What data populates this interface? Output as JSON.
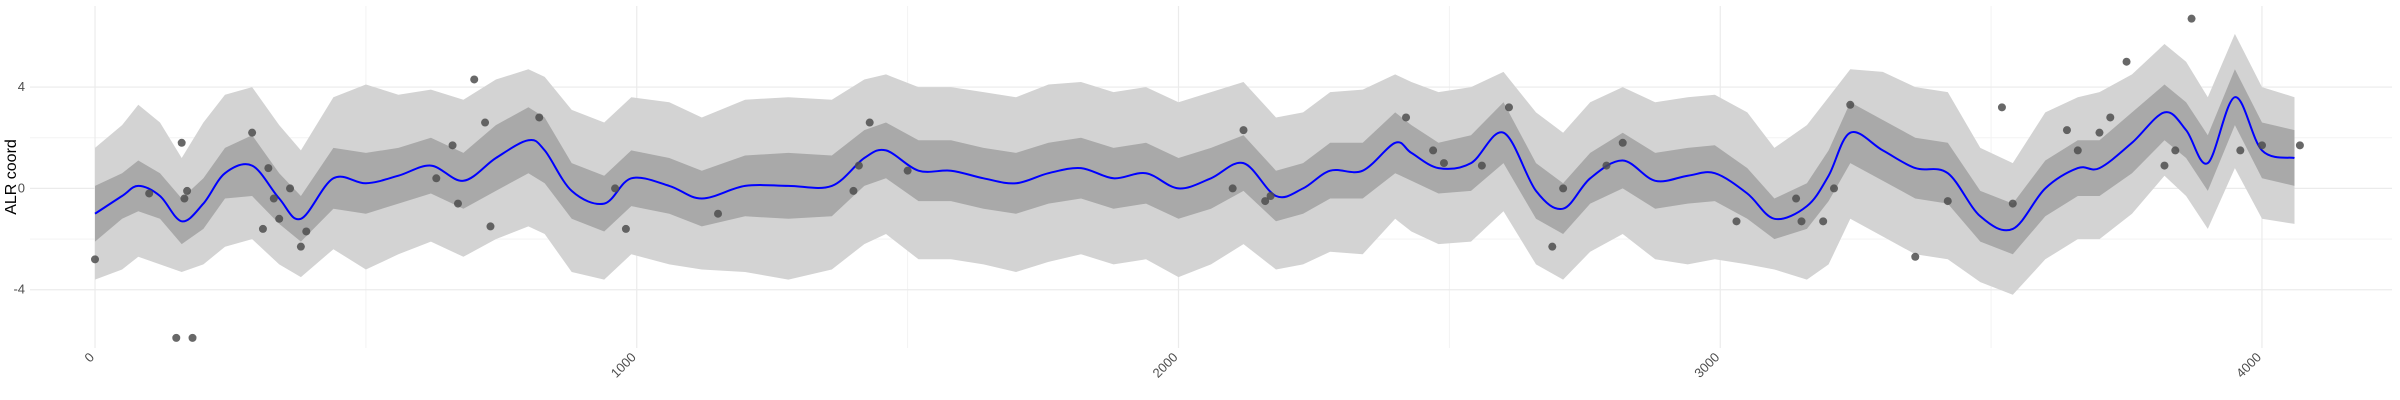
{
  "chart_data": {
    "type": "line",
    "title": "",
    "xlabel": "",
    "ylabel": "ALR coord",
    "xlim": [
      -120,
      4240
    ],
    "ylim": [
      -6.3,
      7.2
    ],
    "x_ticks": [
      0,
      1000,
      2000,
      3000,
      4000
    ],
    "x_tick_labels": [
      "0",
      "1000",
      "2000",
      "3000",
      "4000"
    ],
    "y_ticks": [
      -4,
      0,
      4
    ],
    "y_tick_labels": [
      "-4",
      "0",
      "4"
    ],
    "grid": true,
    "legend": "none",
    "colors": {
      "mean_line": "#0000ff",
      "inner_band": "#a9a9a9",
      "outer_band": "#d3d3d3",
      "points": "#4d4d4d",
      "grid": "#ebebeb"
    },
    "series": [
      {
        "type": "line",
        "x": [
          0,
          50,
          80,
          120,
          160,
          200,
          240,
          290,
          340,
          380,
          440,
          500,
          560,
          620,
          680,
          740,
          800,
          830,
          880,
          940,
          990,
          1060,
          1120,
          1200,
          1280,
          1360,
          1420,
          1460,
          1520,
          1580,
          1640,
          1700,
          1760,
          1820,
          1880,
          1940,
          2000,
          2060,
          2120,
          2180,
          2230,
          2280,
          2340,
          2400,
          2430,
          2480,
          2540,
          2600,
          2660,
          2710,
          2760,
          2820,
          2880,
          2940,
          2990,
          3050,
          3100,
          3160,
          3200,
          3240,
          3300,
          3360,
          3420,
          3480,
          3540,
          3600,
          3660,
          3700,
          3760,
          3820,
          3860,
          3900,
          3950,
          4000,
          4060
        ],
        "y": [
          -1.0,
          -0.3,
          0.1,
          -0.3,
          -1.3,
          -0.6,
          0.6,
          0.9,
          -0.4,
          -1.2,
          0.4,
          0.2,
          0.5,
          0.9,
          0.3,
          1.2,
          1.9,
          1.5,
          -0.1,
          -0.6,
          0.4,
          0.1,
          -0.4,
          0.1,
          0.1,
          0.1,
          1.2,
          1.5,
          0.7,
          0.7,
          0.4,
          0.2,
          0.6,
          0.8,
          0.4,
          0.6,
          0.0,
          0.4,
          1.0,
          -0.3,
          0.0,
          0.7,
          0.7,
          1.8,
          1.4,
          0.8,
          1.0,
          2.2,
          -0.1,
          -0.8,
          0.4,
          1.1,
          0.3,
          0.5,
          0.6,
          -0.2,
          -1.2,
          -0.7,
          0.5,
          2.2,
          1.5,
          0.8,
          0.6,
          -1.1,
          -1.6,
          0.0,
          0.8,
          0.8,
          1.8,
          3.0,
          2.3,
          1.0,
          3.6,
          1.5,
          1.2
        ]
      },
      {
        "type": "band-inner",
        "x": [
          0,
          50,
          80,
          120,
          160,
          200,
          240,
          290,
          340,
          380,
          440,
          500,
          560,
          620,
          680,
          740,
          800,
          830,
          880,
          940,
          990,
          1060,
          1120,
          1200,
          1280,
          1360,
          1420,
          1460,
          1520,
          1580,
          1640,
          1700,
          1760,
          1820,
          1880,
          1940,
          2000,
          2060,
          2120,
          2180,
          2230,
          2280,
          2340,
          2400,
          2430,
          2480,
          2540,
          2600,
          2660,
          2710,
          2760,
          2820,
          2880,
          2940,
          2990,
          3050,
          3100,
          3160,
          3200,
          3240,
          3300,
          3360,
          3420,
          3480,
          3540,
          3600,
          3660,
          3700,
          3760,
          3820,
          3860,
          3900,
          3950,
          4000,
          4060
        ],
        "lower": [
          -2.1,
          -1.2,
          -0.9,
          -1.2,
          -2.2,
          -1.6,
          -0.4,
          -0.3,
          -1.4,
          -2.1,
          -0.8,
          -1.0,
          -0.6,
          -0.2,
          -0.8,
          -0.1,
          0.6,
          0.2,
          -1.2,
          -1.7,
          -0.7,
          -1.0,
          -1.5,
          -1.1,
          -1.2,
          -1.1,
          0.1,
          0.4,
          -0.5,
          -0.5,
          -0.8,
          -1.0,
          -0.6,
          -0.4,
          -0.8,
          -0.6,
          -1.2,
          -0.8,
          -0.1,
          -1.3,
          -1.0,
          -0.4,
          -0.4,
          0.6,
          0.3,
          -0.2,
          -0.1,
          1.0,
          -1.2,
          -1.8,
          -0.6,
          0.0,
          -0.8,
          -0.6,
          -0.5,
          -1.2,
          -2.0,
          -1.6,
          -0.5,
          1.0,
          0.3,
          -0.4,
          -0.6,
          -2.1,
          -2.6,
          -1.1,
          -0.3,
          -0.3,
          0.6,
          1.9,
          1.2,
          -0.1,
          2.5,
          0.4,
          0.1
        ],
        "upper": [
          0.1,
          0.6,
          1.1,
          0.6,
          -0.4,
          0.4,
          1.6,
          2.1,
          0.6,
          -0.3,
          1.6,
          1.4,
          1.6,
          2.0,
          1.4,
          2.5,
          3.2,
          2.8,
          1.0,
          0.5,
          1.5,
          1.2,
          0.7,
          1.3,
          1.4,
          1.3,
          2.3,
          2.6,
          1.9,
          1.9,
          1.6,
          1.4,
          1.8,
          2.0,
          1.6,
          1.8,
          1.2,
          1.6,
          2.1,
          0.7,
          1.0,
          1.8,
          1.8,
          3.0,
          2.5,
          1.8,
          2.1,
          3.4,
          1.0,
          0.2,
          1.4,
          2.2,
          1.4,
          1.6,
          1.7,
          0.8,
          -0.4,
          0.2,
          1.5,
          3.4,
          2.7,
          2.0,
          1.8,
          -0.1,
          -0.6,
          1.1,
          1.9,
          1.9,
          3.0,
          4.1,
          3.4,
          2.1,
          4.7,
          2.6,
          2.3
        ]
      },
      {
        "type": "band-outer",
        "x": [
          0,
          50,
          80,
          120,
          160,
          200,
          240,
          290,
          340,
          380,
          440,
          500,
          560,
          620,
          680,
          740,
          800,
          830,
          880,
          940,
          990,
          1060,
          1120,
          1200,
          1280,
          1360,
          1420,
          1460,
          1520,
          1580,
          1640,
          1700,
          1760,
          1820,
          1880,
          1940,
          2000,
          2060,
          2120,
          2180,
          2230,
          2280,
          2340,
          2400,
          2430,
          2480,
          2540,
          2600,
          2660,
          2710,
          2760,
          2820,
          2880,
          2940,
          2990,
          3050,
          3100,
          3160,
          3200,
          3240,
          3300,
          3360,
          3420,
          3480,
          3540,
          3600,
          3660,
          3700,
          3760,
          3820,
          3860,
          3900,
          3950,
          4000,
          4060
        ],
        "lower": [
          -3.6,
          -3.2,
          -2.7,
          -3.0,
          -3.3,
          -3.0,
          -2.3,
          -2.0,
          -3.0,
          -3.5,
          -2.4,
          -3.2,
          -2.6,
          -2.1,
          -2.7,
          -2.0,
          -1.5,
          -1.8,
          -3.3,
          -3.6,
          -2.6,
          -3.0,
          -3.2,
          -3.3,
          -3.6,
          -3.2,
          -2.2,
          -1.8,
          -2.8,
          -2.8,
          -3.0,
          -3.3,
          -2.9,
          -2.6,
          -3.0,
          -2.8,
          -3.5,
          -3.0,
          -2.2,
          -3.2,
          -3.0,
          -2.5,
          -2.6,
          -1.2,
          -1.7,
          -2.2,
          -2.1,
          -0.9,
          -3.0,
          -3.6,
          -2.5,
          -1.8,
          -2.8,
          -3.0,
          -2.8,
          -3.0,
          -3.2,
          -3.6,
          -3.0,
          -1.2,
          -1.9,
          -2.6,
          -2.8,
          -3.7,
          -4.2,
          -2.8,
          -2.0,
          -2.0,
          -1.0,
          0.5,
          -0.3,
          -1.6,
          0.8,
          -1.2,
          -1.4
        ],
        "upper": [
          1.6,
          2.5,
          3.3,
          2.6,
          1.2,
          2.6,
          3.7,
          4.0,
          2.5,
          1.5,
          3.6,
          4.1,
          3.7,
          3.9,
          3.5,
          4.3,
          4.7,
          4.4,
          3.1,
          2.6,
          3.6,
          3.4,
          2.8,
          3.5,
          3.6,
          3.5,
          4.3,
          4.5,
          4.0,
          4.0,
          3.8,
          3.6,
          4.1,
          4.2,
          3.8,
          4.0,
          3.4,
          3.8,
          4.2,
          2.8,
          3.0,
          3.8,
          3.9,
          4.5,
          4.2,
          3.8,
          4.0,
          4.6,
          3.0,
          2.2,
          3.4,
          4.0,
          3.4,
          3.6,
          3.7,
          3.0,
          1.6,
          2.5,
          3.6,
          4.7,
          4.6,
          4.0,
          3.8,
          1.6,
          1.0,
          3.0,
          3.6,
          3.8,
          4.5,
          5.7,
          5.0,
          3.6,
          6.1,
          4.0,
          3.6
        ]
      },
      {
        "type": "scatter",
        "x": [
          0,
          100,
          150,
          160,
          165,
          170,
          180,
          290,
          310,
          320,
          330,
          340,
          360,
          380,
          390,
          630,
          660,
          670,
          700,
          720,
          730,
          820,
          960,
          980,
          1150,
          1400,
          1410,
          1430,
          1500,
          2100,
          2120,
          2160,
          2170,
          2420,
          2470,
          2490,
          2560,
          2610,
          2690,
          2710,
          2790,
          2820,
          3030,
          3140,
          3150,
          3190,
          3210,
          3240,
          3360,
          3420,
          3520,
          3540,
          3640,
          3660,
          3700,
          3720,
          3750,
          3820,
          3840,
          3870,
          3960,
          4000,
          4070
        ],
        "y": [
          -2.8,
          -0.2,
          -5.9,
          1.8,
          -0.4,
          -0.1,
          -5.9,
          2.2,
          -1.6,
          0.8,
          -0.4,
          -1.2,
          0.0,
          -2.3,
          -1.7,
          0.4,
          1.7,
          -0.6,
          4.3,
          2.6,
          -1.5,
          2.8,
          0.0,
          -1.6,
          -1.0,
          -0.1,
          0.9,
          2.6,
          0.7,
          0.0,
          2.3,
          -0.5,
          -0.3,
          2.8,
          1.5,
          1.0,
          0.9,
          3.2,
          -2.3,
          0.0,
          0.9,
          1.8,
          -1.3,
          -0.4,
          -1.3,
          -1.3,
          0.0,
          3.3,
          -2.7,
          -0.5,
          3.2,
          -0.6,
          2.3,
          1.5,
          2.2,
          2.8,
          5.0,
          0.9,
          1.5,
          6.7,
          1.5,
          1.7,
          1.7
        ]
      }
    ]
  }
}
